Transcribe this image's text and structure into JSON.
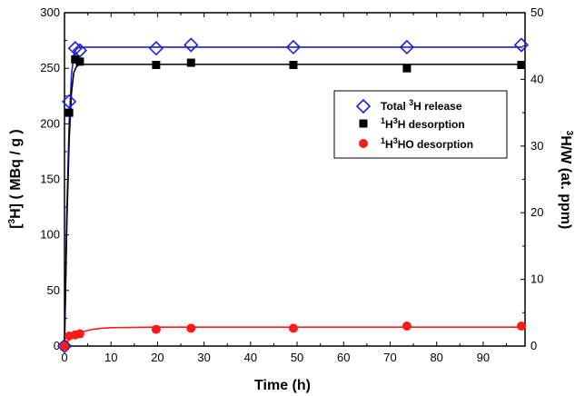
{
  "chart_data": {
    "type": "scatter",
    "x_axis": {
      "label_main": "Time (h)",
      "range": [
        0,
        99
      ],
      "ticks": [
        0,
        10,
        20,
        30,
        40,
        50,
        60,
        70,
        80,
        90
      ]
    },
    "y_left": {
      "label_pre": "[",
      "label_sup": "3",
      "label_post": "H] ( MBq / g )",
      "range": [
        0,
        300
      ],
      "ticks": [
        0,
        50,
        100,
        150,
        200,
        250,
        300
      ]
    },
    "y_right": {
      "label_sup": "3",
      "label_post": "H/W (at. ppm)",
      "range": [
        0,
        50
      ],
      "ticks": [
        0,
        10,
        20,
        30,
        40,
        50
      ]
    },
    "grid": false,
    "legend_position": "upper-right",
    "series": [
      {
        "key": "total",
        "label_pre": "Total ",
        "label_sup": "3",
        "label_post": "H release",
        "color": "#1f1fd6",
        "marker": "diamond-open",
        "x": [
          0,
          1,
          2.3,
          3.3,
          19.7,
          27.2,
          49.2,
          73.6,
          98.2
        ],
        "y": [
          0,
          220,
          268,
          266,
          268,
          271,
          269,
          269,
          271
        ],
        "fit_x": [
          0,
          0.5,
          1,
          1.5,
          2,
          2.5,
          3,
          4,
          6,
          10,
          20,
          50,
          98.5
        ],
        "fit_y": [
          0,
          120,
          200,
          244,
          262,
          267,
          268.5,
          269,
          269,
          269,
          269,
          269,
          269
        ]
      },
      {
        "key": "hh",
        "label_pre": "",
        "label_sup": "1",
        "label_mid": "H",
        "label_sup2": "3",
        "label_post": "H desorption",
        "color": "#000000",
        "marker": "square-filled",
        "x": [
          0,
          1,
          2.3,
          3.3,
          19.7,
          27.2,
          49.2,
          73.6,
          98.2
        ],
        "y": [
          0,
          210,
          258,
          256,
          253,
          255,
          253,
          250,
          253
        ],
        "fit_x": [
          0,
          0.5,
          1,
          1.5,
          2,
          2.5,
          3,
          4,
          6,
          10,
          20,
          50,
          98.5
        ],
        "fit_y": [
          0,
          110,
          185,
          228,
          246,
          251,
          253,
          253.5,
          253.5,
          253.5,
          253.5,
          253.5,
          253.5
        ]
      },
      {
        "key": "hho",
        "label_pre": "",
        "label_sup": "1",
        "label_mid": "H",
        "label_sup2": "3",
        "label_post": "HO desorption",
        "color": "#ff1a1a",
        "marker": "circle-filled",
        "x": [
          0,
          1,
          2.3,
          3.3,
          19.7,
          27.2,
          49.2,
          73.6,
          98.2
        ],
        "y": [
          0,
          9,
          10,
          11,
          15,
          16,
          16,
          18,
          18
        ],
        "fit_x": [
          0,
          1,
          2,
          3,
          4,
          6,
          8,
          10,
          15,
          20,
          30,
          50,
          98.5
        ],
        "fit_y": [
          0,
          6,
          9.5,
          11.5,
          13,
          15,
          16,
          16.5,
          16.8,
          17,
          17,
          17,
          17
        ]
      }
    ]
  }
}
